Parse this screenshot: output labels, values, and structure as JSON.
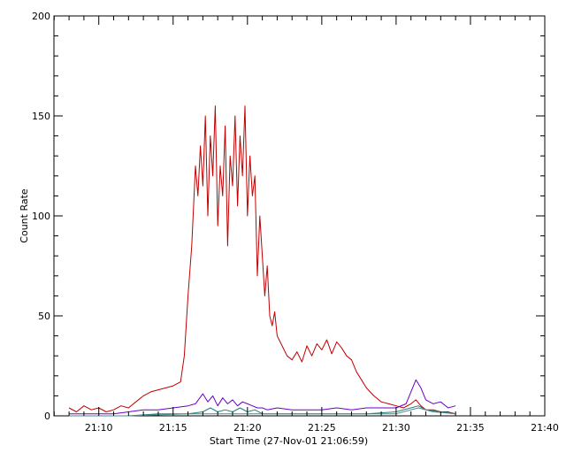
{
  "chart_data": {
    "type": "line",
    "xlabel": "Start Time (27-Nov-01 21:06:59)",
    "ylabel": "Count Rate",
    "x_unit": "time",
    "xlim": [
      "21:06:59",
      "21:40:00"
    ],
    "ylim": [
      0,
      200
    ],
    "x_ticks": [
      "21:10",
      "21:15",
      "21:20",
      "21:25",
      "21:30",
      "21:35",
      "21:40"
    ],
    "y_ticks": [
      0,
      50,
      100,
      150,
      200
    ],
    "grid": false,
    "axis_color": "#000000",
    "series": [
      {
        "color": "#c00000",
        "x": [
          "21:08:00",
          "21:08:30",
          "21:09:00",
          "21:09:30",
          "21:10:00",
          "21:10:30",
          "21:11:00",
          "21:11:30",
          "21:12:00",
          "21:12:30",
          "21:13:00",
          "21:13:30",
          "21:14:00",
          "21:14:30",
          "21:15:00",
          "21:15:15",
          "21:15:30",
          "21:15:45",
          "21:16:00",
          "21:16:15",
          "21:16:30",
          "21:16:40",
          "21:16:50",
          "21:17:00",
          "21:17:10",
          "21:17:20",
          "21:17:30",
          "21:17:40",
          "21:17:50",
          "21:18:00",
          "21:18:10",
          "21:18:20",
          "21:18:30",
          "21:18:40",
          "21:18:50",
          "21:19:00",
          "21:19:10",
          "21:19:20",
          "21:19:30",
          "21:19:40",
          "21:19:50",
          "21:20:00",
          "21:20:10",
          "21:20:20",
          "21:20:30",
          "21:20:40",
          "21:20:50",
          "21:21:00",
          "21:21:10",
          "21:21:20",
          "21:21:30",
          "21:21:40",
          "21:21:50",
          "21:22:00",
          "21:22:20",
          "21:22:40",
          "21:23:00",
          "21:23:20",
          "21:23:40",
          "21:24:00",
          "21:24:20",
          "21:24:40",
          "21:25:00",
          "21:25:20",
          "21:25:40",
          "21:26:00",
          "21:26:20",
          "21:26:40",
          "21:27:00",
          "21:27:20",
          "21:27:40",
          "21:28:00",
          "21:28:30",
          "21:29:00",
          "21:29:30",
          "21:30:00",
          "21:30:30",
          "21:31:00",
          "21:31:20",
          "21:31:40",
          "21:32:00",
          "21:32:30",
          "21:33:00",
          "21:33:30",
          "21:34:00"
        ],
        "y": [
          4,
          2,
          5,
          3,
          4,
          2,
          3,
          5,
          4,
          7,
          10,
          12,
          13,
          14,
          15,
          16,
          17,
          30,
          60,
          85,
          125,
          110,
          135,
          115,
          150,
          100,
          140,
          120,
          155,
          95,
          125,
          110,
          145,
          85,
          130,
          115,
          150,
          105,
          140,
          120,
          155,
          100,
          130,
          110,
          120,
          70,
          100,
          80,
          60,
          75,
          50,
          45,
          52,
          40,
          35,
          30,
          28,
          32,
          27,
          35,
          30,
          36,
          33,
          38,
          31,
          37,
          34,
          30,
          28,
          22,
          18,
          14,
          10,
          7,
          6,
          5,
          4,
          6,
          8,
          5,
          3,
          3,
          2,
          2,
          1
        ]
      },
      {
        "color": "#6a00c8",
        "x": [
          "21:08:00",
          "21:09:00",
          "21:10:00",
          "21:11:00",
          "21:12:00",
          "21:13:00",
          "21:14:00",
          "21:15:00",
          "21:16:00",
          "21:16:30",
          "21:17:00",
          "21:17:20",
          "21:17:40",
          "21:18:00",
          "21:18:20",
          "21:18:40",
          "21:19:00",
          "21:19:20",
          "21:19:40",
          "21:20:00",
          "21:20:20",
          "21:20:40",
          "21:21:00",
          "21:21:20",
          "21:22:00",
          "21:23:00",
          "21:24:00",
          "21:25:00",
          "21:26:00",
          "21:27:00",
          "21:28:00",
          "21:29:00",
          "21:30:00",
          "21:30:40",
          "21:31:00",
          "21:31:20",
          "21:31:40",
          "21:32:00",
          "21:32:30",
          "21:33:00",
          "21:33:30",
          "21:34:00"
        ],
        "y": [
          1,
          1,
          1,
          1,
          2,
          3,
          3,
          4,
          5,
          6,
          11,
          7,
          10,
          5,
          9,
          6,
          8,
          5,
          7,
          6,
          5,
          4,
          4,
          3,
          4,
          3,
          3,
          3,
          4,
          3,
          4,
          4,
          4,
          6,
          12,
          18,
          14,
          8,
          6,
          7,
          4,
          5
        ]
      },
      {
        "color": "#208080",
        "x": [
          "21:08:00",
          "21:10:00",
          "21:12:00",
          "21:14:00",
          "21:16:00",
          "21:17:00",
          "21:17:30",
          "21:18:00",
          "21:18:30",
          "21:19:00",
          "21:19:30",
          "21:20:00",
          "21:20:30",
          "21:21:00",
          "21:22:00",
          "21:24:00",
          "21:26:00",
          "21:28:00",
          "21:30:00",
          "21:31:00",
          "21:31:30",
          "21:32:00",
          "21:33:00",
          "21:34:00"
        ],
        "y": [
          0,
          0,
          0,
          1,
          1,
          2,
          4,
          2,
          3,
          2,
          4,
          2,
          3,
          1,
          1,
          1,
          1,
          1,
          2,
          4,
          5,
          3,
          2,
          1
        ]
      },
      {
        "color": "#4b8a8a",
        "x": [
          "21:08:00",
          "21:12:00",
          "21:16:00",
          "21:18:00",
          "21:20:00",
          "21:22:00",
          "21:26:00",
          "21:30:00",
          "21:31:30",
          "21:32:30",
          "21:34:00"
        ],
        "y": [
          0,
          0,
          1,
          1,
          1,
          1,
          1,
          1,
          4,
          2,
          1
        ]
      }
    ]
  }
}
